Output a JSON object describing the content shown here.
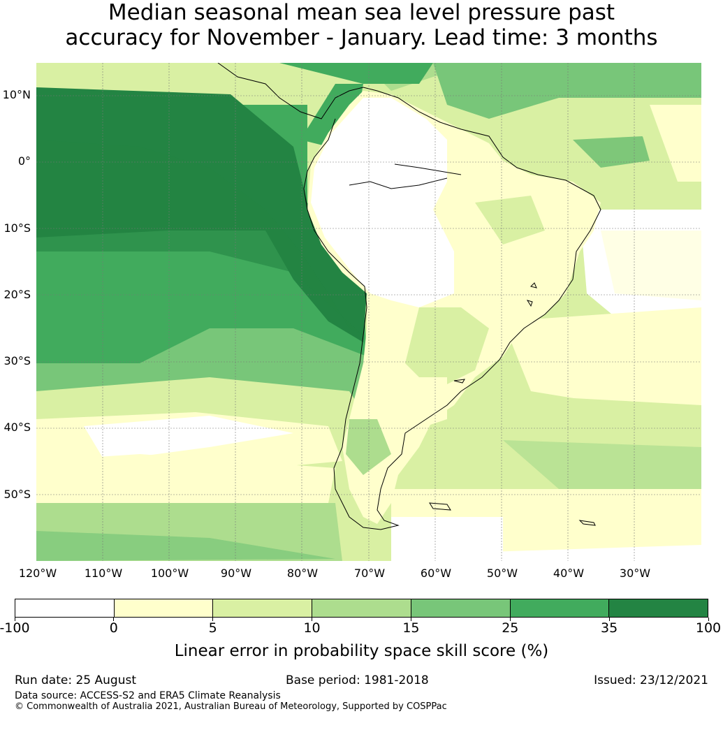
{
  "title": {
    "line1": "Median seasonal mean sea level pressure past",
    "line2": "accuracy for November - January. Lead time: 3 months"
  },
  "map": {
    "region": "South America and adjacent oceans",
    "lat_ticks": [
      "10°N",
      "0°",
      "10°S",
      "20°S",
      "30°S",
      "40°S",
      "50°S"
    ],
    "lon_ticks": [
      "120°W",
      "110°W",
      "100°W",
      "90°W",
      "80°W",
      "70°W",
      "60°W",
      "50°W",
      "40°W",
      "30°W"
    ],
    "gridlines": true
  },
  "colorbar": {
    "boundaries": [
      "-100",
      "0",
      "5",
      "10",
      "15",
      "25",
      "35",
      "100"
    ],
    "colors": [
      "#ffffff",
      "#ffffcc",
      "#d9f0a3",
      "#addd8e",
      "#78c679",
      "#41ab5d",
      "#238443"
    ],
    "label": "Linear error in probability space skill score (%)"
  },
  "footer": {
    "run_date": "Run date: 25 August",
    "base_period": "Base period: 1981-2018",
    "issued": "Issued: 23/12/2021",
    "data_source": "Data source: ACCESS-S2 and ERA5 Climate Reanalysis",
    "copyright": "© Commonwealth of Australia 2021, Australian Bureau of Meteorology, Supported by COSPPac"
  }
}
